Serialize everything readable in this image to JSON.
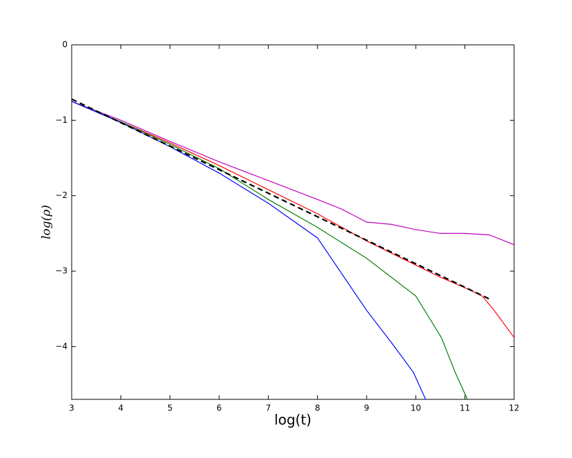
{
  "chart_data": {
    "type": "line",
    "xlabel": "log(t)",
    "ylabel": "log(ρ)",
    "xlim": [
      3,
      12
    ],
    "ylim": [
      -4.7,
      0
    ],
    "xticks": [
      3,
      4,
      5,
      6,
      7,
      8,
      9,
      10,
      11,
      12
    ],
    "yticks": [
      0,
      {
        "value": -1,
        "label": "−1"
      },
      {
        "value": -2,
        "label": "−2"
      },
      {
        "value": -3,
        "label": "−3"
      },
      {
        "value": -4,
        "label": "−4"
      }
    ],
    "series": [
      {
        "color": "#bf00bf",
        "x": [
          3,
          4,
          5,
          6,
          7,
          8,
          8.5,
          9,
          9.5,
          10,
          10.5,
          11,
          11.5,
          12
        ],
        "values": [
          -0.75,
          -1.0,
          -1.28,
          -1.55,
          -1.8,
          -2.05,
          -2.18,
          -2.35,
          -2.38,
          -2.45,
          -2.5,
          -2.5,
          -2.52,
          -2.65
        ]
      },
      {
        "color": "#ff0000",
        "x": [
          3,
          4,
          5,
          6,
          7,
          8,
          9,
          10,
          10.5,
          11,
          11.35,
          11.57,
          12
        ],
        "values": [
          -0.75,
          -1.02,
          -1.3,
          -1.6,
          -1.92,
          -2.24,
          -2.6,
          -2.92,
          -3.08,
          -3.22,
          -3.33,
          -3.5,
          -3.88
        ]
      },
      {
        "color": "#008000",
        "x": [
          3,
          4,
          5,
          6,
          7,
          8,
          9,
          10,
          10.52,
          10.8,
          11.05
        ],
        "values": [
          -0.75,
          -1.02,
          -1.32,
          -1.64,
          -2.05,
          -2.42,
          -2.83,
          -3.33,
          -3.88,
          -4.34,
          -4.7
        ]
      },
      {
        "color": "#0000ff",
        "x": [
          3,
          4,
          5,
          6,
          7,
          8,
          9,
          9.53,
          9.95,
          10.2
        ],
        "values": [
          -0.75,
          -1.03,
          -1.35,
          -1.7,
          -2.1,
          -2.56,
          -3.52,
          -3.97,
          -4.34,
          -4.7
        ]
      },
      {
        "color": "#000000",
        "dashed": true,
        "x": [
          3,
          11.5
        ],
        "values": [
          -0.72,
          -3.37
        ]
      }
    ]
  }
}
